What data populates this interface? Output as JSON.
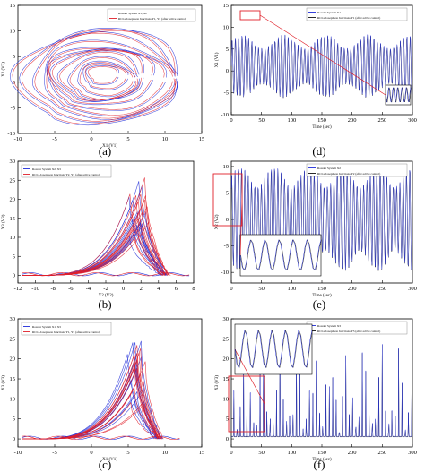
{
  "captions": [
    "(a)",
    "(b)",
    "(c)",
    "(d)",
    "(e)",
    "(f)"
  ],
  "colors": {
    "blue": "#1f2bd8",
    "red": "#e0202a",
    "black": "#111111",
    "navy": "#1a1a60"
  },
  "chart_data": [
    {
      "id": "a",
      "type": "line",
      "xlabel": "X1 (V1)",
      "ylabel": "X2 (V2)",
      "xticks": [
        -10,
        -5,
        0,
        5,
        10,
        15
      ],
      "yticks": [
        -10,
        -5,
        0,
        5,
        10,
        15
      ],
      "xlim": [
        -10,
        15
      ],
      "ylim": [
        -10,
        15
      ],
      "legend": [
        "Rossler System X1, X2",
        "RCLs-Josephson Junctions Y1, Y2 (after active control)"
      ],
      "series": [
        {
          "name": "Rossler System X1, X2",
          "color": "blue"
        },
        {
          "name": "RCLs-Josephson Junctions Y1, Y2 (after active control)",
          "color": "red"
        }
      ]
    },
    {
      "id": "b",
      "type": "line",
      "xlabel": "X2 (V2)",
      "ylabel": "X3 (V3)",
      "xticks": [
        -12,
        -10,
        -8,
        -6,
        -4,
        -2,
        0,
        2,
        4,
        6,
        8
      ],
      "yticks": [
        0,
        5,
        10,
        15,
        20,
        25,
        30
      ],
      "xlim": [
        -12,
        8
      ],
      "ylim": [
        -2,
        30
      ],
      "legend": [
        "Rossler System X2, X3",
        "RCLs-Josephson Junctions Y2, Y3 (after active control)"
      ],
      "series": [
        {
          "name": "Rossler System X2, X3",
          "color": "blue"
        },
        {
          "name": "RCLs-Josephson Junctions Y2, Y3 (after active control)",
          "color": "red"
        }
      ]
    },
    {
      "id": "c",
      "type": "line",
      "xlabel": "X1 (V1)",
      "ylabel": "X3 (V3)",
      "xticks": [
        -10,
        -5,
        0,
        5,
        10,
        15
      ],
      "yticks": [
        0,
        5,
        10,
        15,
        20,
        25,
        30
      ],
      "xlim": [
        -10,
        15
      ],
      "ylim": [
        -2,
        30
      ],
      "legend": [
        "Rossler System X1, X3",
        "RCLs-Josephson Junctions Y1, Y3 (after active control)"
      ],
      "series": [
        {
          "name": "Rossler System X1, X3",
          "color": "blue"
        },
        {
          "name": "RCLs-Josephson Junctions Y1, Y3 (after active control)",
          "color": "red"
        }
      ]
    },
    {
      "id": "d",
      "type": "line",
      "xlabel": "Time (sec)",
      "ylabel": "X1 (V1)",
      "xticks": [
        0,
        50,
        100,
        150,
        200,
        250,
        300
      ],
      "yticks": [
        -10,
        -5,
        0,
        5,
        10,
        15
      ],
      "xlim": [
        0,
        300
      ],
      "ylim": [
        -10,
        15
      ],
      "legend": [
        "Rossler System X1",
        "RCLs-Josephson Junctions Y1 (after active control)"
      ],
      "series": [
        {
          "name": "Rossler System X1",
          "color": "blue"
        },
        {
          "name": "RCLs-Josephson Junctions Y1 (after active control)",
          "color": "black"
        }
      ]
    },
    {
      "id": "e",
      "type": "line",
      "xlabel": "Time (sec)",
      "ylabel": "X2 (V2)",
      "xticks": [
        0,
        50,
        100,
        150,
        200,
        250,
        300
      ],
      "yticks": [
        -10,
        -5,
        0,
        5,
        10
      ],
      "xlim": [
        0,
        300
      ],
      "ylim": [
        -12,
        11
      ],
      "legend": [
        "Rossler System X2",
        "RCLs-Josephson Junctions Y2 (after active control)"
      ],
      "series": [
        {
          "name": "Rossler System X2",
          "color": "blue"
        },
        {
          "name": "RCLs-Josephson Junctions Y2 (after active control)",
          "color": "black"
        }
      ]
    },
    {
      "id": "f",
      "type": "line",
      "xlabel": "Time (sec)",
      "ylabel": "X3 (V3)",
      "xticks": [
        0,
        50,
        100,
        150,
        200,
        250,
        300
      ],
      "yticks": [
        0,
        5,
        10,
        15,
        20,
        25,
        30
      ],
      "xlim": [
        0,
        300
      ],
      "ylim": [
        -2,
        30
      ],
      "legend": [
        "Rossler System X3",
        "RCLs-Josephson Junctions Y3 (after active control)"
      ],
      "series": [
        {
          "name": "Rossler System X3",
          "color": "blue"
        },
        {
          "name": "RCLs-Josephson Junctions Y3 (after active control)",
          "color": "black"
        }
      ]
    }
  ]
}
